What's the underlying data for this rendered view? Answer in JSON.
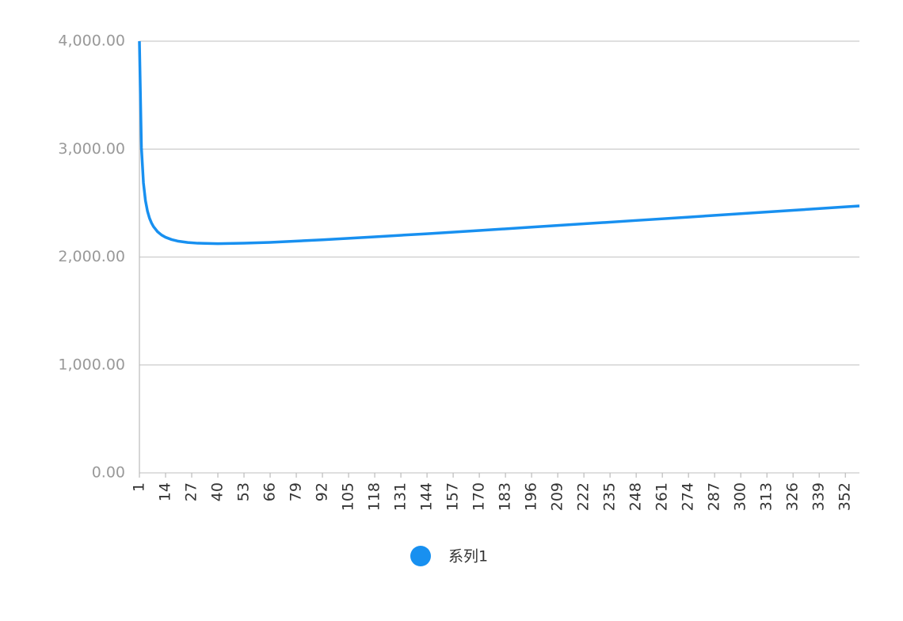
{
  "chart_data": {
    "type": "line",
    "x": [
      1,
      2,
      3,
      4,
      5,
      6,
      7,
      8,
      10,
      12,
      14,
      17,
      20,
      25,
      30,
      40,
      53,
      66,
      92,
      118,
      144,
      170,
      196,
      222,
      248,
      274,
      300,
      326,
      352,
      359
    ],
    "series": [
      {
        "name": "系列1",
        "color": "#1890f0",
        "values": [
          4000,
          3014,
          2687,
          2523,
          2426,
          2361,
          2316,
          2282,
          2235,
          2204,
          2183,
          2162,
          2148,
          2135,
          2128,
          2124,
          2128,
          2136,
          2160,
          2187,
          2216,
          2246,
          2277,
          2308,
          2339,
          2370,
          2402,
          2433,
          2465,
          2473
        ]
      }
    ],
    "xlim": [
      1,
      359
    ],
    "xticks": [
      1,
      14,
      27,
      40,
      53,
      66,
      79,
      92,
      105,
      118,
      131,
      144,
      157,
      170,
      183,
      196,
      209,
      222,
      235,
      248,
      261,
      274,
      287,
      300,
      313,
      326,
      339,
      352
    ],
    "ylim": [
      0,
      4000
    ],
    "yticks": [
      {
        "value": 0,
        "label": "0.00"
      },
      {
        "value": 1000,
        "label": "1,000.00"
      },
      {
        "value": 2000,
        "label": "2,000.00"
      },
      {
        "value": 3000,
        "label": "3,000.00"
      },
      {
        "value": 4000,
        "label": "4,000.00"
      }
    ],
    "grid": true
  }
}
